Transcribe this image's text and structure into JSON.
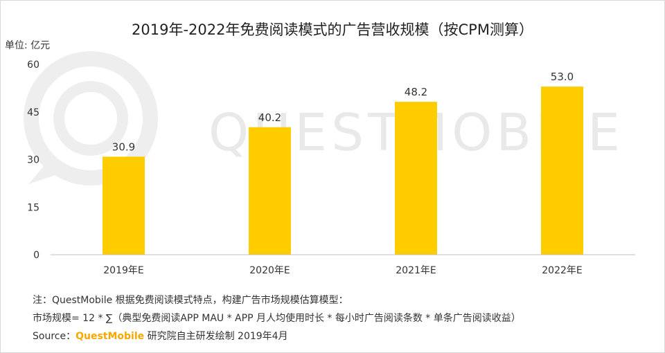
{
  "chart_data": {
    "type": "bar",
    "title": "2019年-2022年免费阅读模式的广告营收规模（按CPM测算）",
    "unit_label": "单位: 亿元",
    "categories": [
      "2019年E",
      "2020年E",
      "2021年E",
      "2022年E"
    ],
    "values": [
      30.9,
      40.2,
      48.2,
      53.0
    ],
    "value_labels": [
      "30.9",
      "40.2",
      "48.2",
      "53.0"
    ],
    "ylim": [
      0,
      60
    ],
    "yticks": [
      "0",
      "15",
      "30",
      "45",
      "60"
    ],
    "ytick_values": [
      0,
      15,
      30,
      45,
      60
    ],
    "bar_color": "#ffcc00",
    "grid": false,
    "legend": false
  },
  "watermark": "QUESTMOBILE",
  "notes": {
    "line1": "注：QuestMobile 根据免费阅读模式特点，构建广告市场规模估算模型：",
    "line2": "市场规模= 12 * ∑（典型免费阅读APP MAU * APP 月人均使用时长 * 每小时广告阅读条数 * 单条广告阅读收益）",
    "source_prefix": "Source：",
    "source_brand": "QuestMobile",
    "source_suffix": " 研究院自主研发绘制 2019年4月"
  }
}
